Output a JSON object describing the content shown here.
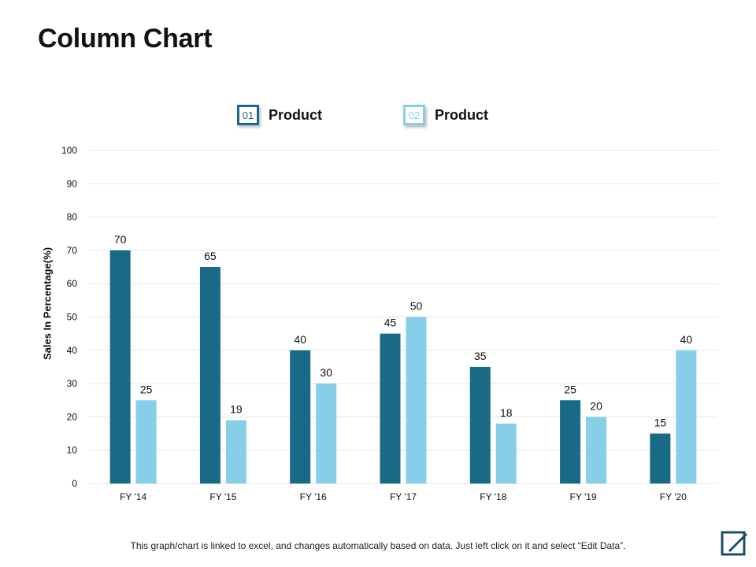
{
  "slide": {
    "title": "Column Chart",
    "footnote": "This graph/chart is linked to excel, and changes automatically based on data. Just left click on it and select “Edit Data”.",
    "edit_icon": "edit-data-icon"
  },
  "legend": [
    {
      "badge": "01",
      "label": "Product",
      "color": "#186a87"
    },
    {
      "badge": "02",
      "label": "Product",
      "color": "#87cfe8"
    }
  ],
  "chart_data": {
    "type": "bar",
    "title": "",
    "xlabel": "",
    "ylabel": "Sales In Percentage(%)",
    "ylim": [
      0,
      100
    ],
    "yticks": [
      0,
      10,
      20,
      30,
      40,
      50,
      60,
      70,
      80,
      90,
      100
    ],
    "categories": [
      "FY '14",
      "FY '15",
      "FY '16",
      "FY '17",
      "FY '18",
      "FY '19",
      "FY '20"
    ],
    "series": [
      {
        "values": [
          70,
          65,
          40,
          45,
          35,
          25,
          15
        ],
        "color": "#186a87"
      },
      {
        "values": [
          25,
          19,
          30,
          50,
          18,
          20,
          40
        ],
        "color": "#87cfe8"
      }
    ],
    "grid": true,
    "legend_position": "top",
    "data_labels": true
  }
}
